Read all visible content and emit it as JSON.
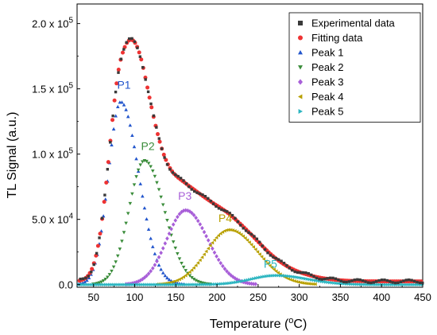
{
  "chart_data": {
    "type": "scatter",
    "xlabel": "Temperature (",
    "xlabel_sup": "o",
    "xlabel_tail": "C)",
    "ylabel": "TL Signal (a.u.)",
    "xlim": [
      30,
      450
    ],
    "ylim": [
      -2000,
      215000
    ],
    "x_ticks": [
      50,
      100,
      150,
      200,
      250,
      300,
      350,
      400,
      450
    ],
    "y_ticks": [
      {
        "value": 0,
        "mant": "0.0",
        "exp": ""
      },
      {
        "value": 50000,
        "mant": "5.0",
        "exp": "4"
      },
      {
        "value": 100000,
        "mant": "1.0",
        "exp": "5"
      },
      {
        "value": 150000,
        "mant": "1.5",
        "exp": "5"
      },
      {
        "value": 200000,
        "mant": "2.0",
        "exp": "5"
      }
    ],
    "legend_position": "top-right",
    "legend": [
      {
        "label": "Experimental data",
        "marker": "square",
        "color": "#3a3a3a"
      },
      {
        "label": "Fitting data",
        "marker": "circle",
        "color": "#ee3333"
      },
      {
        "label": "Peak 1",
        "marker": "triangle-up",
        "color": "#2255cc"
      },
      {
        "label": "Peak 2",
        "marker": "triangle-down",
        "color": "#3a8c3a"
      },
      {
        "label": "Peak 3",
        "marker": "diamond",
        "color": "#a85fd8"
      },
      {
        "label": "Peak 4",
        "marker": "triangle-left",
        "color": "#b8a000"
      },
      {
        "label": "Peak 5",
        "marker": "triangle-right",
        "color": "#2bb5c0"
      }
    ],
    "peaks": [
      {
        "label": "P1",
        "Tm": 83,
        "Im": 140000,
        "sl": 15,
        "sr": 22,
        "color": "#2255cc",
        "marker": "triangle-up",
        "label_pos": [
          87,
          150000
        ]
      },
      {
        "label": "P2",
        "Tm": 112,
        "Im": 95000,
        "sl": 19,
        "sr": 24,
        "color": "#3a8c3a",
        "marker": "triangle-down",
        "label_pos": [
          116,
          103000
        ]
      },
      {
        "label": "P3",
        "Tm": 162,
        "Im": 57000,
        "sl": 23,
        "sr": 27,
        "color": "#a85fd8",
        "marker": "diamond",
        "label_pos": [
          161,
          65000
        ]
      },
      {
        "label": "P4",
        "Tm": 215,
        "Im": 42000,
        "sl": 28,
        "sr": 34,
        "color": "#b8a000",
        "marker": "triangle-left",
        "label_pos": [
          210,
          48000
        ]
      },
      {
        "label": "P5",
        "Tm": 272,
        "Im": 7000,
        "sl": 30,
        "sr": 38,
        "color": "#2bb5c0",
        "marker": "triangle-right",
        "label_pos": [
          265,
          13000
        ]
      }
    ],
    "background": 2500,
    "experimental_color": "#3a3a3a",
    "fitting_color": "#ee3333"
  }
}
